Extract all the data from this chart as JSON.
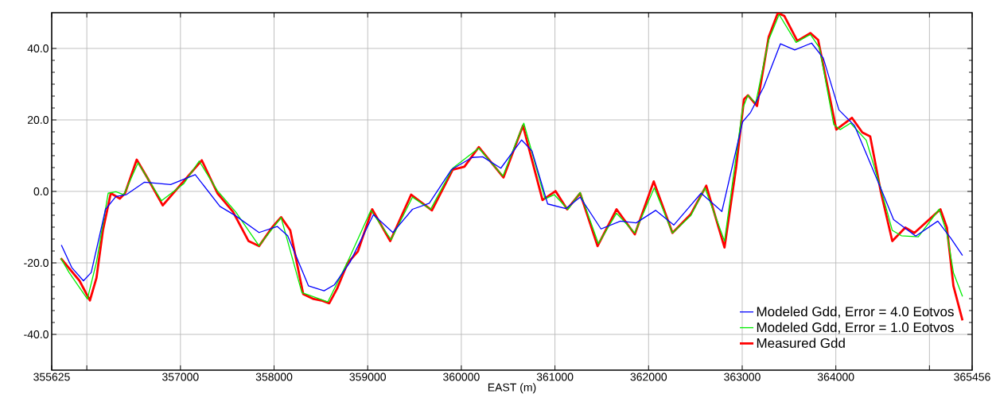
{
  "chart_data": {
    "type": "line",
    "xlabel": "EAST (m)",
    "xlim": [
      355625,
      365456
    ],
    "xticks": [
      355625,
      {
        "value": 356000,
        "label": null
      },
      357000,
      358000,
      359000,
      360000,
      361000,
      362000,
      363000,
      364000,
      {
        "value": 365000,
        "label": null
      },
      365456
    ],
    "ylim": [
      -50,
      50
    ],
    "yticks": [
      {
        "value": -40,
        "label": "-40.0"
      },
      {
        "value": -20,
        "label": "-20.0"
      },
      {
        "value": 0,
        "label": "0.0"
      },
      {
        "value": 20,
        "label": "20.0"
      },
      {
        "value": 40,
        "label": "40.0"
      }
    ],
    "grid": true,
    "legend": "bottom right",
    "marker": "none",
    "line_style": "solid",
    "series": [
      {
        "name": "Modeled Gdd, Error = 4.0 Eotvos",
        "color": "#0000ff",
        "x": [
          355728,
          355839,
          355964,
          356047,
          356200,
          356311,
          356422,
          356617,
          356895,
          357158,
          357422,
          357589,
          357839,
          358034,
          358145,
          358367,
          358534,
          358645,
          358811,
          359061,
          359269,
          359478,
          359658,
          359894,
          360116,
          360228,
          360422,
          360644,
          360755,
          360922,
          361117,
          361269,
          361492,
          361700,
          361867,
          362075,
          362269,
          362561,
          362783,
          363005,
          363089,
          363228,
          363408,
          363561,
          363741,
          363866,
          364033,
          364200,
          364478,
          364617,
          364853,
          365089,
          365228,
          365353
        ],
        "values": [
          -15.0,
          -21.3,
          -25.0,
          -22.7,
          -5.0,
          -1.4,
          -0.9,
          2.6,
          1.9,
          4.7,
          -4.2,
          -6.8,
          -11.5,
          -9.8,
          -12.4,
          -26.4,
          -27.8,
          -26.1,
          -19.8,
          -6.5,
          -11.5,
          -5.0,
          -3.3,
          6.1,
          9.5,
          9.7,
          6.5,
          14.4,
          11.3,
          -3.5,
          -4.8,
          -1.6,
          -10.5,
          -8.3,
          -8.8,
          -5.3,
          -9.4,
          -0.5,
          -5.6,
          19.5,
          22.1,
          29.1,
          41.3,
          39.6,
          41.5,
          37.3,
          22.8,
          18.4,
          1.0,
          -7.9,
          -12.5,
          -8.3,
          -13.1,
          -17.9
        ]
      },
      {
        "name": "Modeled Gdd, Error = 1.0 Eotvos",
        "color": "#00ee00",
        "x": [
          355722,
          355811,
          356006,
          356103,
          356228,
          356311,
          356395,
          356547,
          356797,
          357033,
          357200,
          357395,
          357589,
          357839,
          358075,
          358297,
          358575,
          358784,
          359034,
          359250,
          359478,
          359672,
          359908,
          360186,
          360444,
          360667,
          360894,
          360992,
          361139,
          361269,
          361464,
          361658,
          361853,
          362061,
          362255,
          362450,
          362602,
          362811,
          363005,
          363061,
          363144,
          363283,
          363394,
          363575,
          363728,
          363825,
          363978,
          364047,
          364158,
          364325,
          364478,
          364603,
          364700,
          364881,
          365103,
          365186,
          365256,
          365353
        ],
        "values": [
          -18.7,
          -22.7,
          -30.1,
          -19.8,
          -0.5,
          -0.1,
          -0.9,
          8.0,
          -2.6,
          2.1,
          8.5,
          0.2,
          -5.7,
          -15.2,
          -7.3,
          -28.3,
          -30.9,
          -19.8,
          -5.3,
          -13.5,
          -1.6,
          -5.0,
          6.5,
          12.1,
          4.3,
          19.1,
          -2.1,
          -0.9,
          -5.0,
          -0.3,
          -14.6,
          -6.1,
          -11.6,
          1.0,
          -11.6,
          -6.8,
          1.0,
          -13.9,
          23.2,
          26.9,
          24.7,
          42.4,
          49.5,
          41.7,
          43.9,
          40.2,
          18.7,
          17.3,
          19.1,
          14.3,
          1.0,
          -10.9,
          -12.4,
          -12.7,
          -5.0,
          -11.6,
          -22.7,
          -29.4
        ]
      },
      {
        "name": "Measured Gdd",
        "color": "#ff0000",
        "x": [
          355722,
          355922,
          356033,
          356103,
          356172,
          356256,
          356353,
          356408,
          356533,
          356645,
          356811,
          357033,
          357228,
          357395,
          357561,
          357728,
          357839,
          357978,
          358075,
          358173,
          358311,
          358422,
          358506,
          358589,
          358673,
          358784,
          358895,
          359048,
          359241,
          359464,
          359686,
          359908,
          360033,
          360186,
          360450,
          360658,
          360867,
          361006,
          361130,
          361269,
          361455,
          361658,
          361853,
          362055,
          362255,
          362450,
          362616,
          362811,
          362936,
          363019,
          363061,
          363158,
          363283,
          363380,
          363450,
          363589,
          363728,
          363811,
          364005,
          364172,
          364283,
          364367,
          364478,
          364603,
          364742,
          364839,
          365117,
          365186,
          365256,
          365353
        ],
        "values": [
          -18.7,
          -25.0,
          -30.5,
          -24.2,
          -10.9,
          -0.5,
          -2.0,
          -0.5,
          8.9,
          3.9,
          -3.9,
          2.8,
          8.7,
          -0.5,
          -5.7,
          -13.9,
          -15.3,
          -10.1,
          -7.2,
          -10.9,
          -28.7,
          -30.1,
          -30.5,
          -31.3,
          -27.2,
          -20.1,
          -16.8,
          -5.0,
          -13.9,
          -0.9,
          -5.3,
          6.1,
          6.9,
          12.4,
          3.9,
          18.4,
          -2.4,
          0.1,
          -5.0,
          -0.5,
          -15.3,
          -5.0,
          -12.0,
          2.8,
          -11.6,
          -6.4,
          1.6,
          -15.7,
          6.9,
          25.8,
          26.9,
          23.9,
          43.2,
          49.9,
          49.1,
          42.1,
          44.3,
          42.4,
          17.3,
          20.6,
          16.5,
          15.4,
          0.2,
          -13.9,
          -10.1,
          -11.6,
          -5.0,
          -10.1,
          -26.4,
          -36.1
        ]
      }
    ]
  }
}
